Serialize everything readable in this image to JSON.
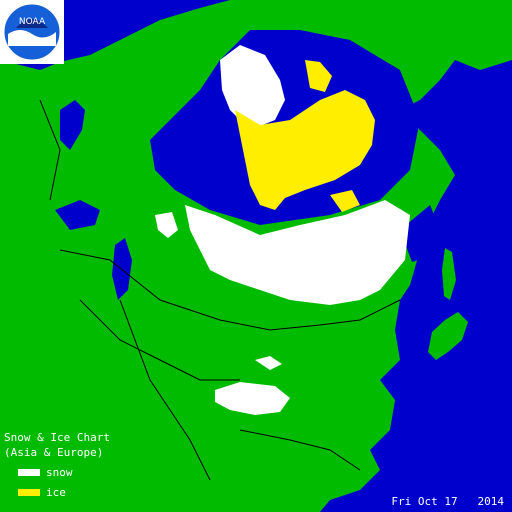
{
  "map": {
    "title_line1": "Snow & Ice Chart",
    "title_line2": "(Asia & Europe)",
    "colors": {
      "water": "#0000cc",
      "land": "#00bb00",
      "snow": "#ffffff",
      "ice": "#ffee00",
      "boundaries": "#000000"
    }
  },
  "legend": {
    "items": [
      {
        "label": "snow",
        "color": "#ffffff"
      },
      {
        "label": "ice",
        "color": "#ffee00"
      }
    ]
  },
  "date": {
    "text": "Fri Oct 17   2014"
  },
  "logo": {
    "text": "NOAA",
    "icon": "noaa-logo-icon"
  }
}
